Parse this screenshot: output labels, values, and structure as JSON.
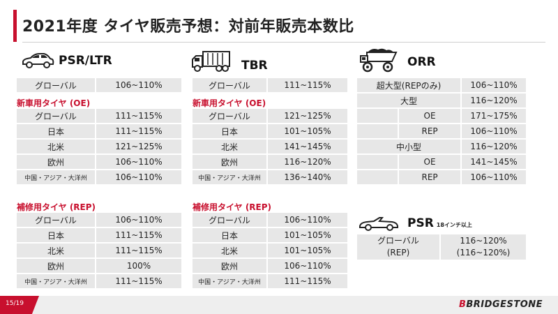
{
  "title": "2021年度 タイヤ販売予想：対前年販売本数比",
  "psr_ltr": {
    "name": "PSR/LTR",
    "global_label": "グローバル",
    "global_value": "106~110%",
    "oe_heading": "新車用タイヤ (OE)",
    "oe_rows": [
      {
        "label": "グローバル",
        "value": "111~115%"
      },
      {
        "label": "日本",
        "value": "111~115%"
      },
      {
        "label": "北米",
        "value": "121~125%"
      },
      {
        "label": "欧州",
        "value": "106~110%"
      },
      {
        "label": "中国・アジア・大洋州",
        "value": "106~110%"
      }
    ],
    "rep_heading": "補修用タイヤ (REP)",
    "rep_rows": [
      {
        "label": "グローバル",
        "value": "106~110%"
      },
      {
        "label": "日本",
        "value": "111~115%"
      },
      {
        "label": "北米",
        "value": "111~115%"
      },
      {
        "label": "欧州",
        "value": "100%"
      },
      {
        "label": "中国・アジア・大洋州",
        "value": "111~115%"
      }
    ]
  },
  "tbr": {
    "name": "TBR",
    "global_label": "グローバル",
    "global_value": "111~115%",
    "oe_heading": "新車用タイヤ (OE)",
    "oe_rows": [
      {
        "label": "グローバル",
        "value": "121~125%"
      },
      {
        "label": "日本",
        "value": "101~105%"
      },
      {
        "label": "北米",
        "value": "141~145%"
      },
      {
        "label": "欧州",
        "value": "116~120%"
      },
      {
        "label": "中国・アジア・大洋州",
        "value": "136~140%"
      }
    ],
    "rep_heading": "補修用タイヤ (REP)",
    "rep_rows": [
      {
        "label": "グローバル",
        "value": "106~110%"
      },
      {
        "label": "日本",
        "value": "101~105%"
      },
      {
        "label": "北米",
        "value": "101~105%"
      },
      {
        "label": "欧州",
        "value": "106~110%"
      },
      {
        "label": "中国・アジア・大洋州",
        "value": "111~115%"
      }
    ]
  },
  "orr": {
    "name": "ORR",
    "ultra_label": "超大型(REPのみ)",
    "ultra_value": "106~110%",
    "large_label": "大型",
    "large_value": "116~120%",
    "large_oe_label": "OE",
    "large_oe_value": "171~175%",
    "large_rep_label": "REP",
    "large_rep_value": "106~110%",
    "mid_label": "中小型",
    "mid_value": "116~120%",
    "mid_oe_label": "OE",
    "mid_oe_value": "141~145%",
    "mid_rep_label": "REP",
    "mid_rep_value": "106~110%"
  },
  "psr18": {
    "name": "PSR",
    "suffix": "18インチ以上",
    "label_line1": "グローバル",
    "label_line2": "(REP)",
    "value_line1": "116~120%",
    "value_line2": "(116~120%)"
  },
  "footer": {
    "page": "15/19",
    "brand_first": "B",
    "brand_rest": "BRIDGESTONE"
  }
}
